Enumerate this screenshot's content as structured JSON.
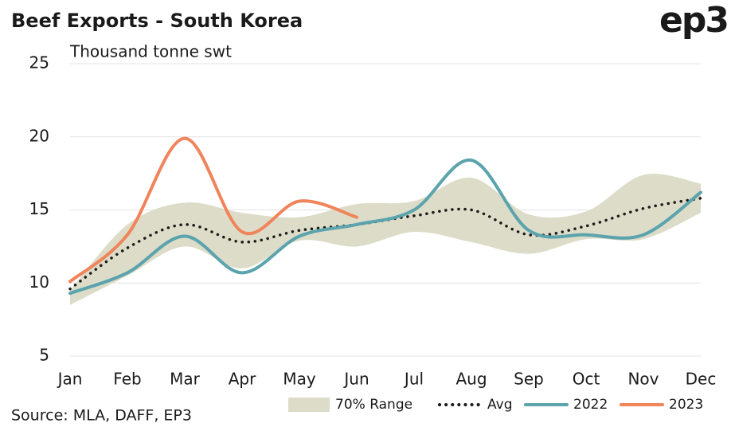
{
  "chart_data": {
    "type": "line",
    "title": "Beef Exports - South Korea",
    "subtitle": "Thousand tonne swt",
    "source": "Source: MLA, DAFF, EP3",
    "logo": "ep3",
    "categories": [
      "Jan",
      "Feb",
      "Mar",
      "Apr",
      "May",
      "Jun",
      "Jul",
      "Aug",
      "Sep",
      "Oct",
      "Nov",
      "Dec"
    ],
    "range": {
      "name": "70% Range",
      "color": "#dcdcc8",
      "low": [
        8.5,
        10.5,
        12.5,
        11.0,
        12.9,
        12.5,
        13.5,
        12.8,
        12.0,
        13.0,
        13.0,
        14.8
      ],
      "high": [
        9.5,
        14.0,
        15.5,
        14.8,
        14.5,
        15.4,
        15.6,
        17.2,
        14.7,
        14.9,
        17.4,
        16.8
      ]
    },
    "series": [
      {
        "name": "Avg",
        "color": "#1a1a1a",
        "dash": true,
        "values": [
          9.6,
          12.4,
          14.0,
          12.8,
          13.6,
          14.0,
          14.6,
          15.0,
          13.3,
          13.9,
          15.1,
          15.8
        ]
      },
      {
        "name": "2022",
        "color": "#5ba3ad",
        "values": [
          9.3,
          10.7,
          13.2,
          10.7,
          13.2,
          14.0,
          15.0,
          18.4,
          13.6,
          13.3,
          13.3,
          16.2
        ]
      },
      {
        "name": "2023",
        "color": "#f0845a",
        "values": [
          10.1,
          13.3,
          19.9,
          13.5,
          15.6,
          14.5,
          null,
          null,
          null,
          null,
          null,
          null
        ]
      }
    ],
    "ylim": [
      5,
      25
    ],
    "yticks": [
      5,
      10,
      15,
      20,
      25
    ],
    "grid": true
  }
}
